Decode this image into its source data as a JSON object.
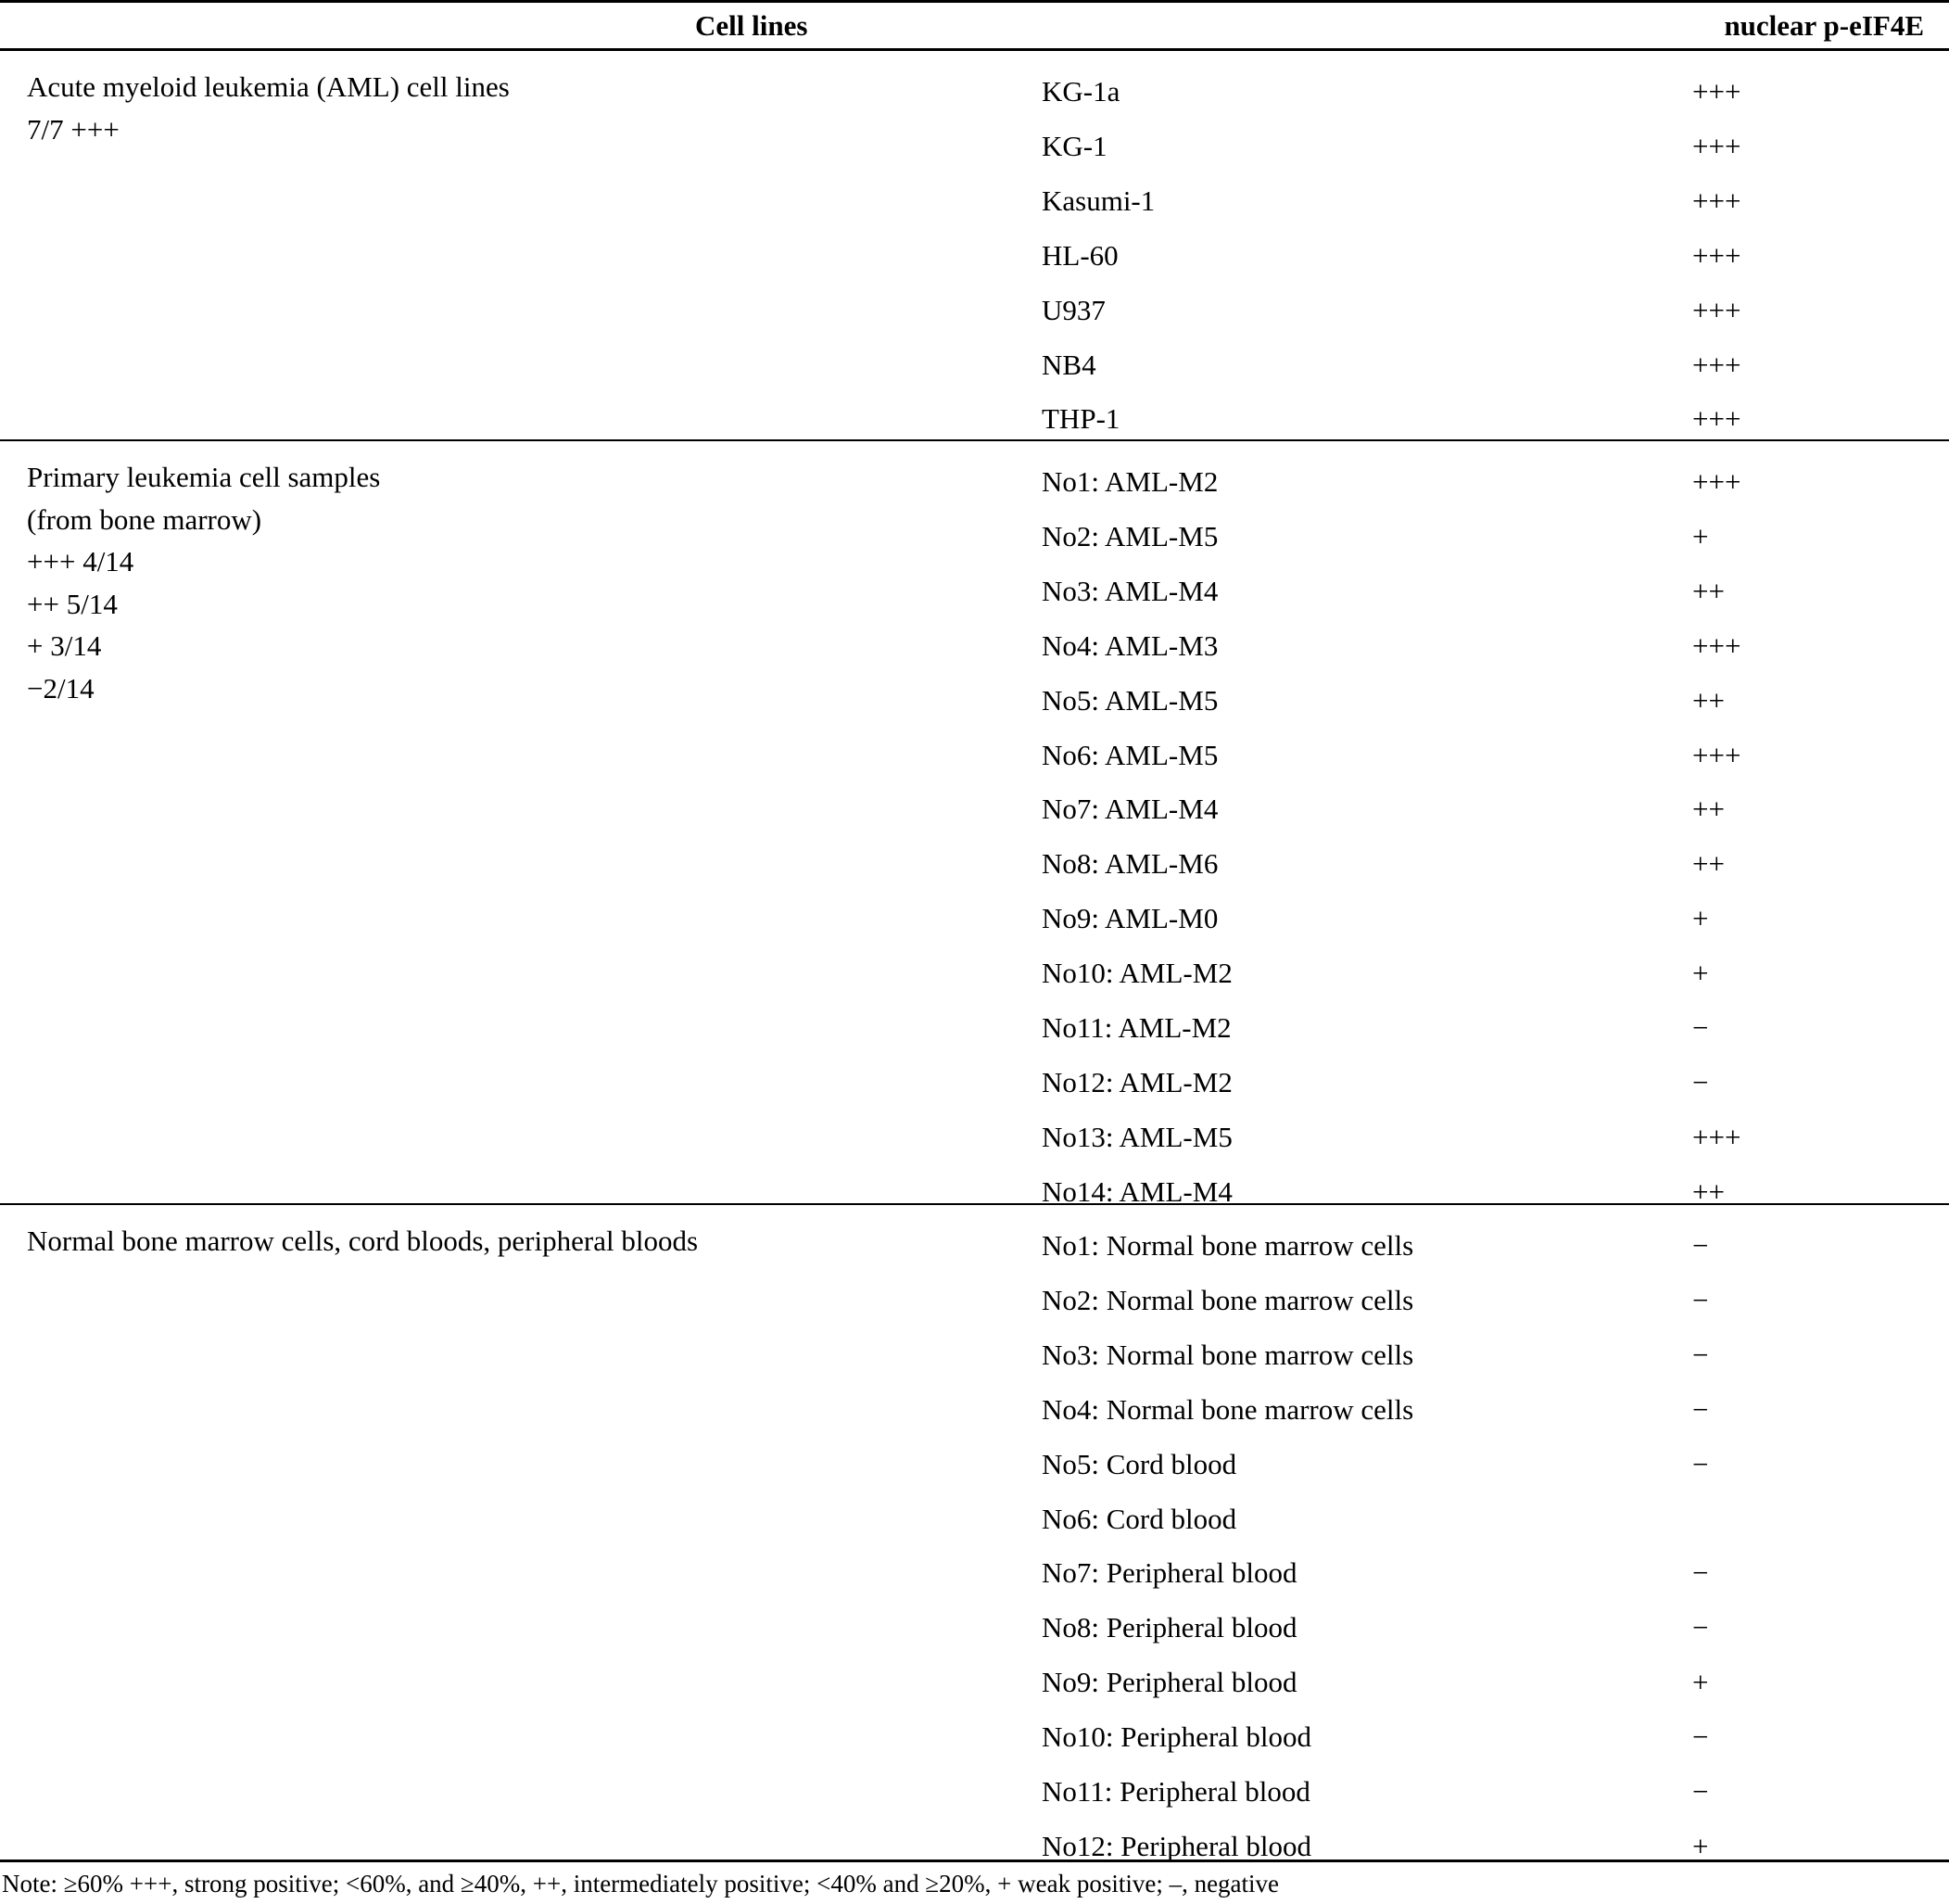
{
  "header": {
    "cell_lines": "Cell lines",
    "marker": "nuclear p-eIF4E"
  },
  "sections": [
    {
      "group_lines": [
        "Acute myeloid leukemia (AML) cell lines",
        "7/7 +++"
      ],
      "rows": [
        {
          "name": "KG-1a",
          "value": "+++"
        },
        {
          "name": "KG-1",
          "value": "+++"
        },
        {
          "name": "Kasumi-1",
          "value": "+++"
        },
        {
          "name": "HL-60",
          "value": "+++"
        },
        {
          "name": "U937",
          "value": "+++"
        },
        {
          "name": "NB4",
          "value": "+++"
        },
        {
          "name": "THP-1",
          "value": "+++"
        }
      ]
    },
    {
      "group_lines": [
        "Primary leukemia cell samples",
        "(from bone marrow)",
        "+++ 4/14",
        "++ 5/14",
        "+ 3/14",
        "−2/14"
      ],
      "rows": [
        {
          "name": "No1: AML-M2",
          "value": "+++"
        },
        {
          "name": "No2: AML-M5",
          "value": "+"
        },
        {
          "name": "No3: AML-M4",
          "value": "++"
        },
        {
          "name": "No4: AML-M3",
          "value": "+++"
        },
        {
          "name": "No5: AML-M5",
          "value": "++"
        },
        {
          "name": "No6: AML-M5",
          "value": "+++"
        },
        {
          "name": "No7: AML-M4",
          "value": "++"
        },
        {
          "name": "No8: AML-M6",
          "value": "++"
        },
        {
          "name": "No9: AML-M0",
          "value": "+"
        },
        {
          "name": "No10: AML-M2",
          "value": "+"
        },
        {
          "name": "No11: AML-M2",
          "value": "−"
        },
        {
          "name": "No12: AML-M2",
          "value": "−"
        },
        {
          "name": "No13: AML-M5",
          "value": "+++"
        },
        {
          "name": "No14: AML-M4",
          "value": "++"
        }
      ]
    },
    {
      "group_lines": [
        "Normal bone marrow cells, cord bloods, peripheral bloods"
      ],
      "rows": [
        {
          "name": "No1: Normal bone marrow cells",
          "value": "−"
        },
        {
          "name": "No2: Normal bone marrow cells",
          "value": "−"
        },
        {
          "name": "No3: Normal bone marrow cells",
          "value": "−"
        },
        {
          "name": "No4: Normal bone marrow cells",
          "value": "−"
        },
        {
          "name": "No5: Cord blood",
          "value": "−"
        },
        {
          "name": "No6: Cord blood",
          "value": ""
        },
        {
          "name": "No7: Peripheral blood",
          "value": "−"
        },
        {
          "name": "No8: Peripheral blood",
          "value": "−"
        },
        {
          "name": "No9: Peripheral blood",
          "value": "+"
        },
        {
          "name": "No10: Peripheral blood",
          "value": "−"
        },
        {
          "name": "No11: Peripheral blood",
          "value": "−"
        },
        {
          "name": "No12: Peripheral blood",
          "value": "+"
        }
      ]
    }
  ],
  "note": "Note: ≥60% +++, strong positive; <60%, and ≥40%, ++, intermediately positive; <40% and ≥20%, + weak positive; –, negative"
}
